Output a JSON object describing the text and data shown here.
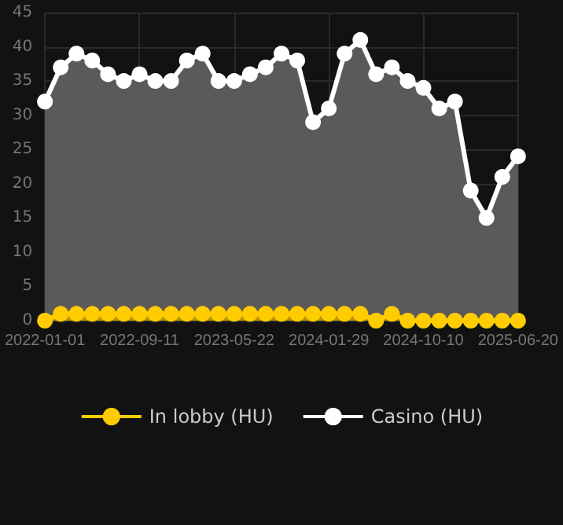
{
  "chart_data": {
    "type": "area",
    "categories": [
      "2022-01-01",
      null,
      null,
      null,
      null,
      null,
      "2022-09-11",
      null,
      null,
      null,
      null,
      null,
      "2023-05-22",
      null,
      null,
      null,
      null,
      null,
      "2024-01-29",
      null,
      null,
      null,
      null,
      null,
      "2024-10-10",
      null,
      null,
      null,
      null,
      null,
      "2025-06-20"
    ],
    "series": [
      {
        "name": "In lobby (HU)",
        "color": "#ffcc00",
        "values": [
          0,
          1,
          1,
          1,
          1,
          1,
          1,
          1,
          1,
          1,
          1,
          1,
          1,
          1,
          1,
          1,
          1,
          1,
          1,
          1,
          1,
          0,
          1,
          0,
          0,
          0,
          0,
          0,
          0,
          0,
          0
        ]
      },
      {
        "name": "Casino (HU)",
        "color": "#ffffff",
        "values": [
          32,
          37,
          39,
          38,
          36,
          35,
          36,
          35,
          35,
          38,
          39,
          35,
          35,
          36,
          37,
          39,
          38,
          29,
          31,
          39,
          41,
          36,
          37,
          35,
          34,
          31,
          32,
          19,
          15,
          21,
          24
        ]
      }
    ],
    "ylim": [
      0,
      45
    ],
    "yticks": [
      0,
      5,
      10,
      15,
      20,
      25,
      30,
      35,
      40,
      45
    ],
    "grid": true,
    "legend": "bottom",
    "marker": "circle"
  }
}
